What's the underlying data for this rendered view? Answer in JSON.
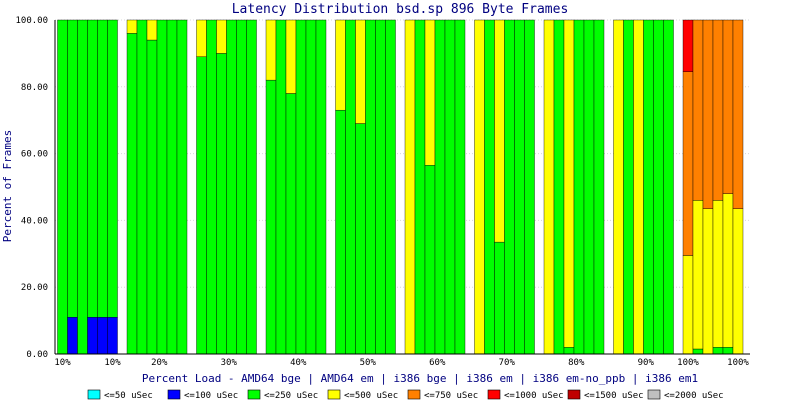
{
  "chart_data": {
    "type": "bar",
    "stacked": true,
    "title": "Latency Distribution bsd.sp 896 Byte Frames",
    "xlabel": "Percent Load - AMD64 bge | AMD64 em | i386 bge | i386 em | i386 em-no_ppb | i386 em1",
    "ylabel": "Percent of Frames",
    "ylim": [
      0,
      100
    ],
    "yticks": [
      "0.00",
      "20.00",
      "40.00",
      "60.00",
      "80.00",
      "100.00"
    ],
    "grid": true,
    "legend_position": "bottom",
    "groups": [
      "10%",
      "20%",
      "30%",
      "40%",
      "50%",
      "60%",
      "70%",
      "80%",
      "90%",
      "100%"
    ],
    "x_tick_labels": [
      "10%",
      "10%",
      "20%",
      "30%",
      "40%",
      "50%",
      "60%",
      "70%",
      "80%",
      "90%",
      "100%",
      "100%"
    ],
    "series": [
      {
        "name": "<=50 uSec",
        "color": "#00ffff"
      },
      {
        "name": "<=100 uSec",
        "color": "#0000ff"
      },
      {
        "name": "<=250 uSec",
        "color": "#00ff00"
      },
      {
        "name": "<=500 uSec",
        "color": "#ffff00"
      },
      {
        "name": "<=750 uSec",
        "color": "#ff8000"
      },
      {
        "name": "<=1000 uSec",
        "color": "#ff0000"
      },
      {
        "name": "<=1500 uSec",
        "color": "#c00000"
      },
      {
        "name": "<=2000 uSec",
        "color": "#c0c0c0"
      }
    ],
    "bars": [
      [
        [
          0,
          0,
          100,
          0,
          0,
          0,
          0,
          0
        ],
        [
          0,
          11,
          89,
          0,
          0,
          0,
          0,
          0
        ],
        [
          0,
          0,
          100,
          0,
          0,
          0,
          0,
          0
        ],
        [
          0,
          11,
          89,
          0,
          0,
          0,
          0,
          0
        ],
        [
          0,
          11,
          89,
          0,
          0,
          0,
          0,
          0
        ],
        [
          0,
          11,
          89,
          0,
          0,
          0,
          0,
          0
        ]
      ],
      [
        [
          0,
          0,
          96,
          4,
          0,
          0,
          0,
          0
        ],
        [
          0,
          0,
          100,
          0,
          0,
          0,
          0,
          0
        ],
        [
          0,
          0,
          94,
          6,
          0,
          0,
          0,
          0
        ],
        [
          0,
          0,
          100,
          0,
          0,
          0,
          0,
          0
        ],
        [
          0,
          0,
          100,
          0,
          0,
          0,
          0,
          0
        ],
        [
          0,
          0,
          100,
          0,
          0,
          0,
          0,
          0
        ]
      ],
      [
        [
          0,
          0,
          89,
          11,
          0,
          0,
          0,
          0
        ],
        [
          0,
          0,
          100,
          0,
          0,
          0,
          0,
          0
        ],
        [
          0,
          0,
          90,
          10,
          0,
          0,
          0,
          0
        ],
        [
          0,
          0,
          100,
          0,
          0,
          0,
          0,
          0
        ],
        [
          0,
          0,
          100,
          0,
          0,
          0,
          0,
          0
        ],
        [
          0,
          0,
          100,
          0,
          0,
          0,
          0,
          0
        ]
      ],
      [
        [
          0,
          0,
          82,
          18,
          0,
          0,
          0,
          0
        ],
        [
          0,
          0,
          100,
          0,
          0,
          0,
          0,
          0
        ],
        [
          0,
          0,
          78,
          22,
          0,
          0,
          0,
          0
        ],
        [
          0,
          0,
          100,
          0,
          0,
          0,
          0,
          0
        ],
        [
          0,
          0,
          100,
          0,
          0,
          0,
          0,
          0
        ],
        [
          0,
          0,
          100,
          0,
          0,
          0,
          0,
          0
        ]
      ],
      [
        [
          0,
          0,
          73,
          27,
          0,
          0,
          0,
          0
        ],
        [
          0,
          0,
          100,
          0,
          0,
          0,
          0,
          0
        ],
        [
          0,
          0,
          69,
          31,
          0,
          0,
          0,
          0
        ],
        [
          0,
          0,
          100,
          0,
          0,
          0,
          0,
          0
        ],
        [
          0,
          0,
          100,
          0,
          0,
          0,
          0,
          0
        ],
        [
          0,
          0,
          100,
          0,
          0,
          0,
          0,
          0
        ]
      ],
      [
        [
          0,
          0,
          0,
          100,
          0,
          0,
          0,
          0
        ],
        [
          0,
          0,
          100,
          0,
          0,
          0,
          0,
          0
        ],
        [
          0,
          0,
          56.5,
          43.5,
          0,
          0,
          0,
          0
        ],
        [
          0,
          0,
          100,
          0,
          0,
          0,
          0,
          0
        ],
        [
          0,
          0,
          100,
          0,
          0,
          0,
          0,
          0
        ],
        [
          0,
          0,
          100,
          0,
          0,
          0,
          0,
          0
        ]
      ],
      [
        [
          0,
          0,
          0,
          100,
          0,
          0,
          0,
          0
        ],
        [
          0,
          0,
          100,
          0,
          0,
          0,
          0,
          0
        ],
        [
          0,
          0,
          33.5,
          66.5,
          0,
          0,
          0,
          0
        ],
        [
          0,
          0,
          100,
          0,
          0,
          0,
          0,
          0
        ],
        [
          0,
          0,
          100,
          0,
          0,
          0,
          0,
          0
        ],
        [
          0,
          0,
          100,
          0,
          0,
          0,
          0,
          0
        ]
      ],
      [
        [
          0,
          0,
          0,
          100,
          0,
          0,
          0,
          0
        ],
        [
          0,
          0,
          100,
          0,
          0,
          0,
          0,
          0
        ],
        [
          0,
          0,
          2,
          98,
          0,
          0,
          0,
          0
        ],
        [
          0,
          0,
          100,
          0,
          0,
          0,
          0,
          0
        ],
        [
          0,
          0,
          100,
          0,
          0,
          0,
          0,
          0
        ],
        [
          0,
          0,
          100,
          0,
          0,
          0,
          0,
          0
        ]
      ],
      [
        [
          0,
          0,
          0,
          100,
          0,
          0,
          0,
          0
        ],
        [
          0,
          0,
          100,
          0,
          0,
          0,
          0,
          0
        ],
        [
          0,
          0,
          0,
          100,
          0,
          0,
          0,
          0
        ],
        [
          0,
          0,
          100,
          0,
          0,
          0,
          0,
          0
        ],
        [
          0,
          0,
          100,
          0,
          0,
          0,
          0,
          0
        ],
        [
          0,
          0,
          100,
          0,
          0,
          0,
          0,
          0
        ]
      ],
      [
        [
          0,
          0,
          0,
          29.5,
          55,
          15.5,
          0,
          0
        ],
        [
          0,
          0,
          1.5,
          44.5,
          54,
          0,
          0,
          0
        ],
        [
          0,
          0,
          0,
          43.5,
          56.5,
          0,
          0,
          0
        ],
        [
          0,
          0,
          2,
          44,
          54,
          0,
          0,
          0
        ],
        [
          0,
          0,
          2,
          46,
          52,
          0,
          0,
          0
        ],
        [
          0,
          0,
          0,
          43.5,
          56.5,
          0,
          0,
          0
        ]
      ]
    ]
  }
}
